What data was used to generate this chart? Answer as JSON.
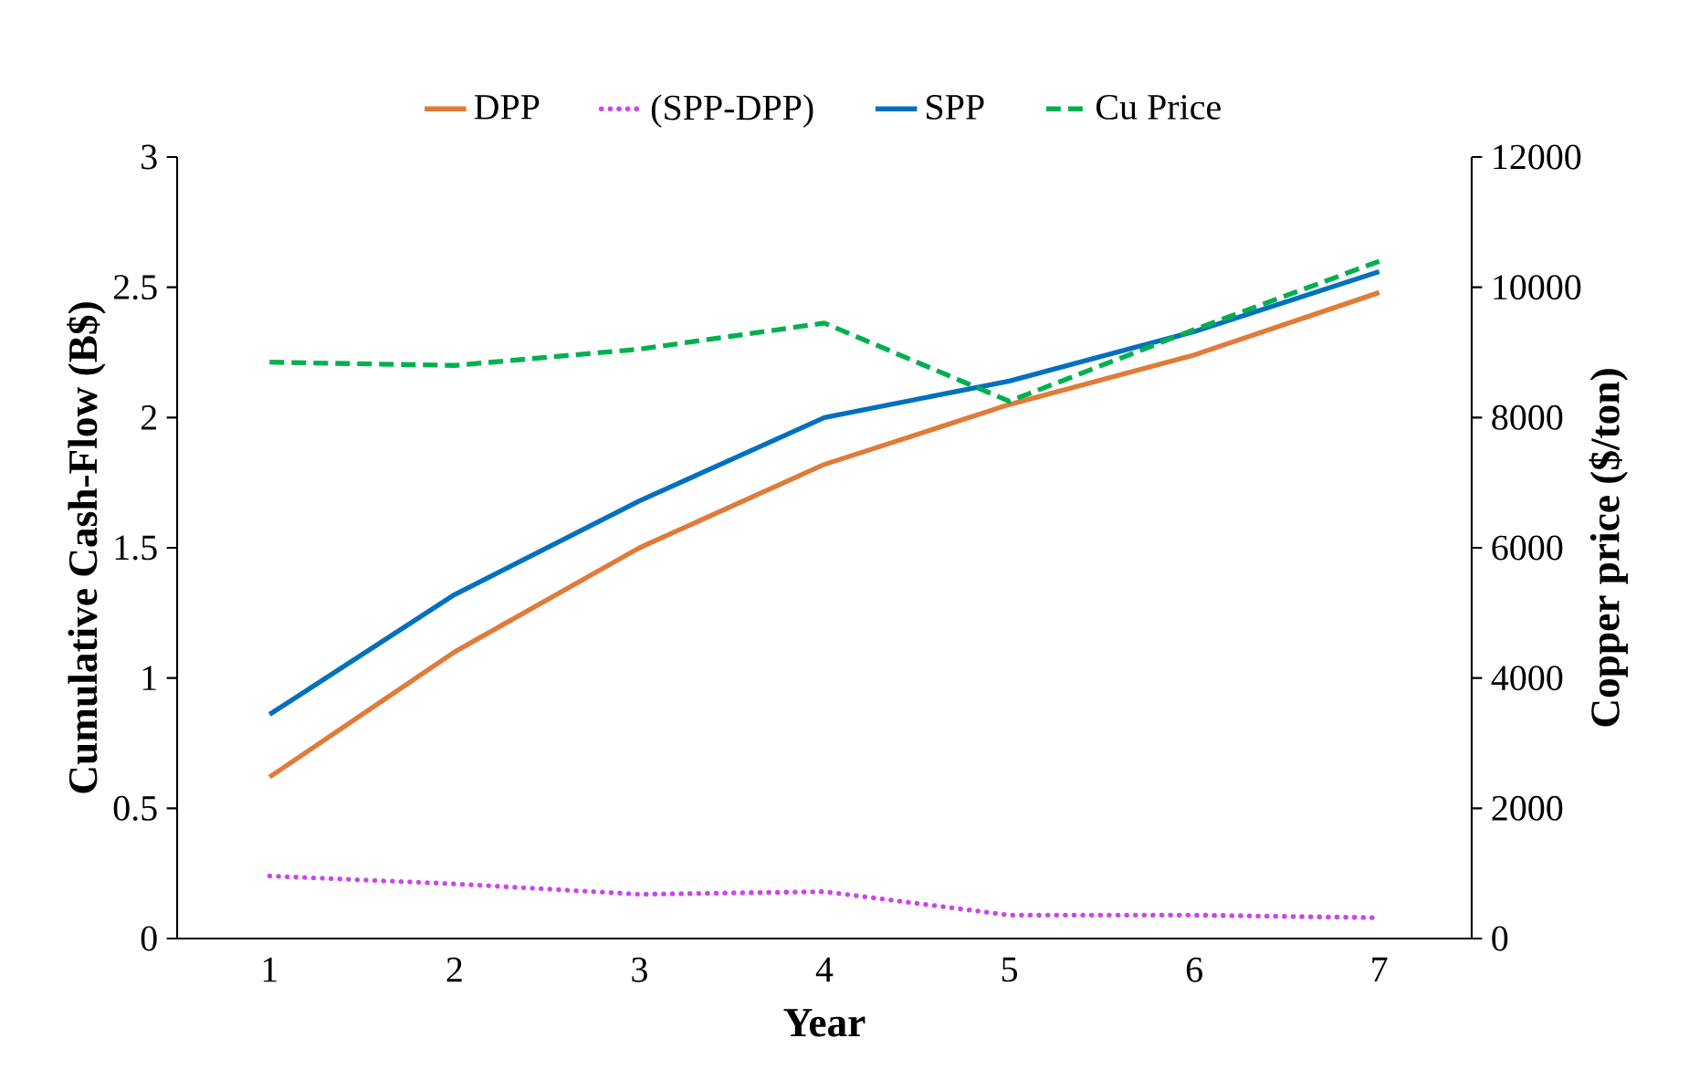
{
  "chart_data": {
    "type": "line",
    "xlabel": "Year",
    "ylabel": "Cumulative Cash-Flow (B$)",
    "y2label": "Copper price ($/ton)",
    "categories": [
      "1",
      "2",
      "3",
      "4",
      "5",
      "6",
      "7"
    ],
    "series": [
      {
        "name": "DPP",
        "color": "#e07b39",
        "line_style": "solid",
        "values": [
          0.62,
          1.1,
          1.5,
          1.82,
          2.05,
          2.24,
          2.48
        ]
      },
      {
        "name": "(SPP-DPP)",
        "color": "#cc44ee",
        "line_style": "dotted",
        "values": [
          0.24,
          0.21,
          0.17,
          0.18,
          0.09,
          0.09,
          0.08
        ]
      },
      {
        "name": "SPP",
        "color": "#0070c0",
        "line_style": "solid",
        "values": [
          0.86,
          1.32,
          1.68,
          2.0,
          2.14,
          2.33,
          2.56
        ]
      },
      {
        "name": "Cu Price",
        "color": "#00b050",
        "line_style": "dashed",
        "axis": "y2",
        "values": [
          8850,
          8800,
          9050,
          9450,
          8250,
          9350,
          10400
        ]
      }
    ],
    "ylim": [
      0,
      3
    ],
    "yticks": [
      0,
      0.5,
      1,
      1.5,
      2,
      2.5,
      3
    ],
    "y2lim": [
      0,
      12000
    ],
    "y2ticks": [
      0,
      2000,
      4000,
      6000,
      8000,
      10000,
      12000
    ],
    "legend": "top",
    "grid": false,
    "marker": "none"
  }
}
